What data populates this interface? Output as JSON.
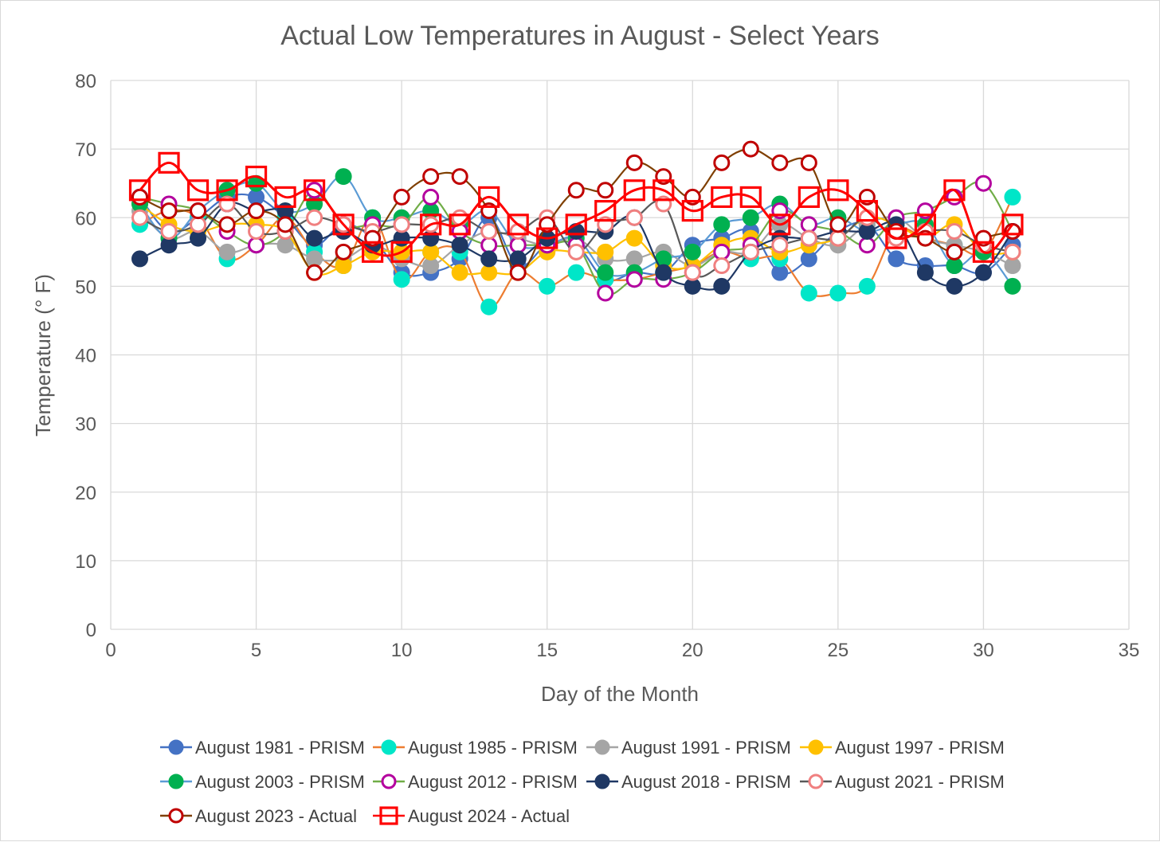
{
  "chart_data": {
    "type": "line",
    "title": "Actual Low Temperatures in August - Select Years",
    "xlabel": "Day of the Month",
    "ylabel": "Temperature (° F)",
    "xlim": [
      0,
      35
    ],
    "ylim": [
      0,
      80
    ],
    "x_ticks": [
      0,
      5,
      10,
      15,
      20,
      25,
      30,
      35
    ],
    "y_ticks": [
      0,
      10,
      20,
      30,
      40,
      50,
      60,
      70,
      80
    ],
    "grid": true,
    "legend_position": "bottom",
    "x": [
      1,
      2,
      3,
      4,
      5,
      6,
      7,
      8,
      9,
      10,
      11,
      12,
      13,
      14,
      15,
      16,
      17,
      18,
      19,
      20,
      21,
      22,
      23,
      24,
      25,
      26,
      27,
      28,
      29,
      30,
      31
    ],
    "series": [
      {
        "name": "August 1981 - PRISM",
        "color": "#4472C4",
        "marker": "filled-circle",
        "values": [
          63,
          58,
          60,
          63,
          63,
          60,
          56,
          59,
          57,
          52,
          52,
          54,
          60,
          53,
          56,
          56,
          51,
          52,
          52,
          56,
          57,
          58,
          52,
          54,
          58,
          59,
          54,
          53,
          53,
          52,
          56
        ]
      },
      {
        "name": "August 1985 - PRISM",
        "color": "#00E6C8",
        "line_color": "#ED7D31",
        "marker": "filled-circle",
        "values": [
          59,
          61,
          60,
          54,
          56,
          60,
          55,
          53,
          60,
          51,
          55,
          55,
          47,
          52,
          50,
          52,
          51,
          51,
          52,
          53,
          55,
          54,
          54,
          49,
          49,
          50,
          58,
          57,
          56,
          55,
          63
        ]
      },
      {
        "name": "August 1991 - PRISM",
        "color": "#A5A5A5",
        "marker": "filled-circle",
        "values": [
          61,
          57,
          58,
          55,
          56,
          56,
          54,
          54,
          56,
          54,
          53,
          56,
          58,
          57,
          56,
          57,
          54,
          54,
          55,
          53,
          55,
          55,
          59,
          57,
          56,
          59,
          60,
          57,
          56,
          55,
          53
        ]
      },
      {
        "name": "August 1997 - PRISM",
        "color": "#FFC000",
        "marker": "filled-circle",
        "values": [
          62,
          59,
          58,
          59,
          59,
          58,
          52,
          53,
          55,
          55,
          55,
          52,
          52,
          52,
          55,
          55,
          55,
          57,
          53,
          53,
          56,
          57,
          55,
          56,
          57,
          60,
          59,
          57,
          59,
          55,
          55
        ]
      },
      {
        "name": "August 2003 - PRISM",
        "color": "#00B050",
        "line_color": "#5B9BD5",
        "marker": "filled-circle",
        "values": [
          62,
          57,
          61,
          64,
          65,
          61,
          62,
          66,
          60,
          60,
          61,
          59,
          61,
          56,
          56,
          57,
          52,
          52,
          54,
          55,
          59,
          60,
          62,
          59,
          60,
          58,
          59,
          59,
          53,
          55,
          50
        ]
      },
      {
        "name": "August 2012 - PRISM",
        "color": "#B4009E",
        "line_color": "#70AD47",
        "marker": "open-circle",
        "values": [
          63,
          62,
          61,
          58,
          56,
          58,
          64,
          59,
          59,
          59,
          63,
          58,
          56,
          56,
          56,
          56,
          49,
          51,
          51,
          52,
          55,
          56,
          61,
          59,
          58,
          56,
          60,
          61,
          63,
          65,
          58
        ]
      },
      {
        "name": "August 2018 - PRISM",
        "color": "#1F3864",
        "marker": "filled-circle",
        "values": [
          54,
          56,
          57,
          62,
          61,
          61,
          57,
          58,
          56,
          57,
          57,
          56,
          54,
          54,
          57,
          58,
          58,
          60,
          52,
          50,
          50,
          55,
          57,
          57,
          58,
          58,
          59,
          52,
          50,
          52,
          58
        ]
      },
      {
        "name": "August 2021 - PRISM",
        "color": "#F08080",
        "line_color": "#595959",
        "marker": "open-circle",
        "values": [
          60,
          58,
          59,
          62,
          58,
          58,
          60,
          59,
          58,
          59,
          59,
          60,
          58,
          58,
          60,
          55,
          59,
          60,
          62,
          52,
          53,
          55,
          56,
          57,
          57,
          60,
          57,
          58,
          58,
          56,
          55
        ]
      },
      {
        "name": "August 2023 - Actual",
        "color": "#C00000",
        "line_color": "#7F3F00",
        "marker": "open-circle",
        "values": [
          63,
          61,
          61,
          59,
          61,
          59,
          52,
          55,
          57,
          63,
          66,
          66,
          61,
          52,
          59,
          64,
          64,
          68,
          66,
          63,
          68,
          70,
          68,
          68,
          59,
          63,
          58,
          57,
          55,
          57,
          58
        ]
      },
      {
        "name": "August 2024 - Actual",
        "color": "#FF0000",
        "marker": "open-square",
        "values": [
          64,
          68,
          64,
          64,
          66,
          63,
          64,
          59,
          55,
          55,
          59,
          59,
          63,
          59,
          57,
          59,
          61,
          64,
          64,
          61,
          63,
          63,
          59,
          63,
          64,
          61,
          57,
          59,
          64,
          55,
          59
        ]
      }
    ]
  }
}
